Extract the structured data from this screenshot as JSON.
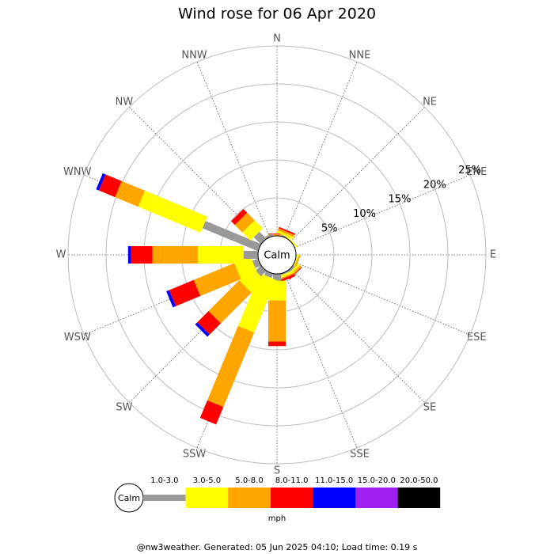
{
  "chart_data": {
    "type": "windrose",
    "title": "Wind rose for 06 Apr 2020",
    "categories": [
      "N",
      "NNE",
      "NE",
      "ENE",
      "E",
      "ESE",
      "SE",
      "SSE",
      "S",
      "SSW",
      "SW",
      "WSW",
      "W",
      "WNW",
      "NW",
      "NNW"
    ],
    "series": [
      {
        "name": "1.0-3.0",
        "color": "#999999",
        "values": [
          0,
          0.2,
          0,
          0,
          0,
          0,
          0.3,
          0.2,
          0.9,
          0.6,
          1.0,
          0.8,
          1.9,
          7.9,
          1.3,
          0.3
        ]
      },
      {
        "name": "3.0-5.0",
        "color": "#ffff00",
        "values": [
          0,
          0.3,
          0.2,
          0,
          0,
          0.2,
          0.3,
          0.3,
          2.6,
          7.5,
          2.4,
          2.3,
          6.0,
          8.9,
          1.5,
          0
        ]
      },
      {
        "name": "5.0-8.0",
        "color": "#ffa500",
        "values": [
          0.2,
          0.3,
          0,
          0,
          0,
          0.2,
          0.3,
          0.2,
          5.4,
          10.6,
          5.7,
          5.8,
          6.0,
          3.3,
          1.4,
          0
        ]
      },
      {
        "name": "8.0-11.0",
        "color": "#ff0000",
        "values": [
          0.1,
          0.2,
          0,
          0,
          0,
          0,
          0.1,
          0.3,
          0.6,
          2.5,
          2.1,
          3.5,
          2.8,
          2.3,
          0.7,
          0
        ]
      },
      {
        "name": "11.0-15.0",
        "color": "#0000ff",
        "values": [
          0,
          0,
          0,
          0,
          0,
          0,
          0,
          0,
          0,
          0,
          0.4,
          0.4,
          0.4,
          0.4,
          0,
          0
        ]
      },
      {
        "name": "15.0-20.0",
        "color": "#a020f0",
        "values": [
          0,
          0,
          0,
          0,
          0,
          0,
          0,
          0,
          0,
          0,
          0,
          0,
          0,
          0,
          0,
          0
        ]
      },
      {
        "name": "20.0-50.0",
        "color": "#000000",
        "values": [
          0,
          0,
          0,
          0,
          0,
          0,
          0,
          0,
          0,
          0,
          0,
          0,
          0,
          0,
          0,
          0
        ]
      }
    ],
    "rlim": [
      0,
      25
    ],
    "rticks": [
      {
        "value": 5,
        "label": "5%"
      },
      {
        "value": 10,
        "label": "10%"
      },
      {
        "value": 15,
        "label": "15%"
      },
      {
        "value": 20,
        "label": "20%"
      },
      {
        "value": 25,
        "label": "25%"
      }
    ],
    "calm_label": "Calm",
    "legend_unit": "mph",
    "footer": "@nw3weather. Generated: 05 Jun 2025 04:10; Load time: 0.19 s"
  }
}
